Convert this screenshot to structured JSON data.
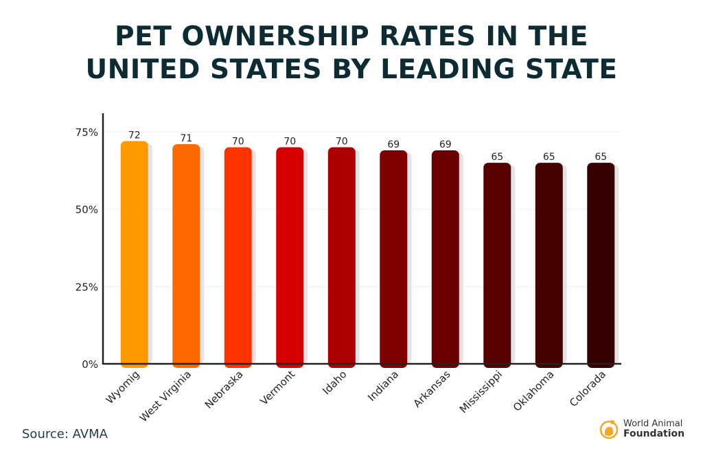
{
  "chart_data": {
    "type": "bar",
    "title": "PET OWNERSHIP RATES IN THE UNITED STATES BY LEADING STATE",
    "title_lines": [
      "PET OWNERSHIP RATES IN THE",
      "UNITED STATES BY LEADING STATE"
    ],
    "categories": [
      "Wyomig",
      "West Virginia",
      "Nebraska",
      "Vermont",
      "Idaho",
      "Indiana",
      "Arkansas",
      "Mississippi",
      "Oklahoma",
      "Colorada"
    ],
    "values": [
      72,
      71,
      70,
      70,
      70,
      69,
      69,
      65,
      65,
      65
    ],
    "colors": [
      "#ff9900",
      "#ff6a00",
      "#ff3300",
      "#d60000",
      "#ad0000",
      "#800000",
      "#6b0000",
      "#560000",
      "#450000",
      "#360000"
    ],
    "ylim": [
      0,
      75
    ],
    "yticks": [
      0,
      25,
      50,
      75
    ],
    "ytick_labels": [
      "0%",
      "25%",
      "50%",
      "75%"
    ],
    "grid": true,
    "xlabel": "",
    "ylabel": ""
  },
  "source": "Source: AVMA",
  "logo": {
    "line1": "World Animal",
    "line2": "Foundation",
    "color": "#f5a623"
  }
}
